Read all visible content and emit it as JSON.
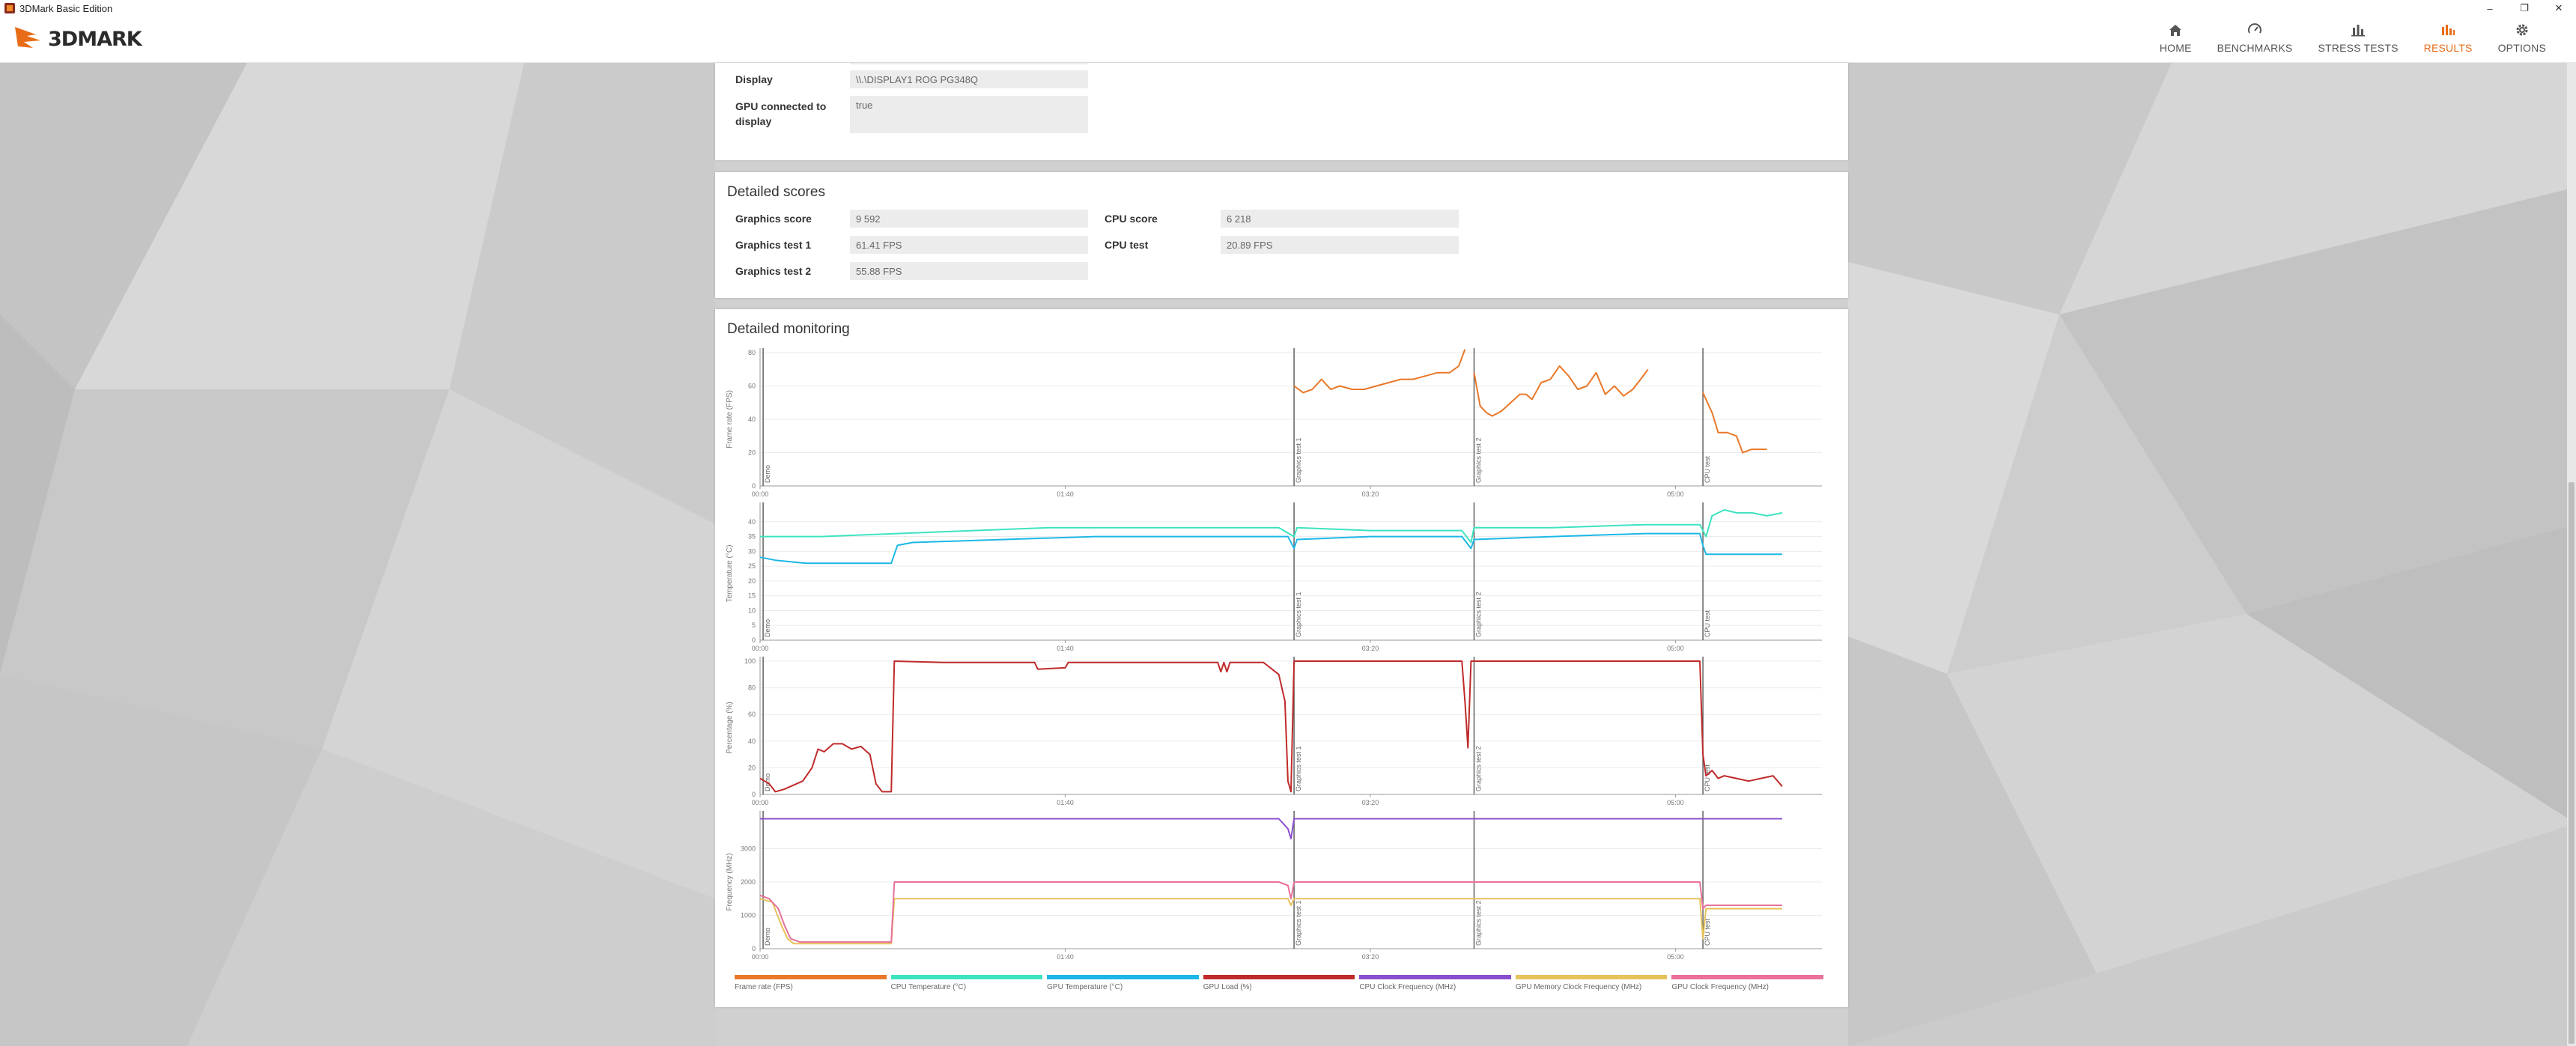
{
  "window": {
    "title": "3DMark Basic Edition"
  },
  "header": {
    "logo": "3DMARK",
    "nav": [
      {
        "label": "HOME",
        "icon": "home-icon",
        "active": false
      },
      {
        "label": "BENCHMARKS",
        "icon": "benchmarks-icon",
        "active": false
      },
      {
        "label": "STRESS TESTS",
        "icon": "stress-tests-icon",
        "active": false
      },
      {
        "label": "RESULTS",
        "icon": "results-icon",
        "active": true
      },
      {
        "label": "OPTIONS",
        "icon": "gear-icon",
        "active": false
      }
    ]
  },
  "display_info": {
    "rows": [
      {
        "label": "Display",
        "value": "\\\\.\\DISPLAY1 ROG PG348Q"
      },
      {
        "label": "GPU connected to display",
        "value": "true"
      }
    ]
  },
  "detailed_scores": {
    "title": "Detailed scores",
    "rows": [
      {
        "label": "Graphics score",
        "value": "9 592"
      },
      {
        "label": "Graphics test 1",
        "value": "61.41 FPS"
      },
      {
        "label": "Graphics test 2",
        "value": "55.88 FPS"
      },
      {
        "label": "CPU score",
        "value": "6 218"
      },
      {
        "label": "CPU test",
        "value": "20.89 FPS"
      }
    ]
  },
  "monitoring": {
    "title": "Detailed monitoring",
    "x_ticks": [
      "00:00",
      "01:40",
      "03:20",
      "05:00"
    ],
    "markers": [
      "Demo",
      "Graphics test 1",
      "Graphics test 2",
      "CPU test"
    ],
    "legend": [
      {
        "label": "Frame rate (FPS)",
        "color": "#e9782a"
      },
      {
        "label": "CPU Temperature (°C)",
        "color": "#3de3c0"
      },
      {
        "label": "GPU Temperature (°C)",
        "color": "#1cb7e6"
      },
      {
        "label": "GPU Load (%)",
        "color": "#c02a2a"
      },
      {
        "label": "CPU Clock Frequency (MHz)",
        "color": "#8a4fcf"
      },
      {
        "label": "GPU Memory Clock Frequency (MHz)",
        "color": "#e6c25a"
      },
      {
        "label": "GPU Clock Frequency (MHz)",
        "color": "#e8729a"
      }
    ]
  },
  "chart_data": [
    {
      "type": "line",
      "ylabel": "Frame rate (FPS)",
      "ylim": [
        0,
        80
      ],
      "yticks": [
        0,
        20,
        40,
        60,
        80
      ],
      "xlim": [
        0,
        348
      ],
      "series": [
        {
          "name": "Frame rate (FPS)",
          "color": "#e9782a",
          "segments": [
            [
              [
                175,
                60
              ],
              [
                178,
                56
              ],
              [
                181,
                58
              ],
              [
                184,
                64
              ],
              [
                187,
                58
              ],
              [
                190,
                60
              ],
              [
                194,
                58
              ],
              [
                198,
                58
              ],
              [
                202,
                60
              ],
              [
                206,
                62
              ],
              [
                210,
                64
              ],
              [
                214,
                64
              ],
              [
                218,
                66
              ],
              [
                222,
                68
              ],
              [
                226,
                68
              ],
              [
                229,
                72
              ],
              [
                231,
                82
              ]
            ],
            [
              [
                234,
                68
              ],
              [
                236,
                48
              ],
              [
                238,
                44
              ],
              [
                240,
                42
              ],
              [
                243,
                45
              ],
              [
                246,
                50
              ],
              [
                249,
                55
              ],
              [
                251,
                55
              ],
              [
                253,
                52
              ],
              [
                256,
                62
              ],
              [
                259,
                64
              ],
              [
                262,
                72
              ],
              [
                265,
                66
              ],
              [
                268,
                58
              ],
              [
                271,
                60
              ],
              [
                274,
                68
              ],
              [
                277,
                55
              ],
              [
                280,
                60
              ],
              [
                283,
                54
              ],
              [
                286,
                58
              ],
              [
                289,
                65
              ],
              [
                291,
                70
              ]
            ],
            [
              [
                309,
                56
              ],
              [
                312,
                44
              ],
              [
                314,
                32
              ],
              [
                317,
                32
              ],
              [
                320,
                30
              ],
              [
                322,
                20
              ],
              [
                325,
                22
              ],
              [
                328,
                22
              ],
              [
                330,
                22
              ]
            ]
          ]
        }
      ]
    },
    {
      "type": "line",
      "ylabel": "Temperature (°C)",
      "ylim": [
        0,
        45
      ],
      "yticks": [
        0,
        5,
        10,
        15,
        20,
        25,
        30,
        35,
        40
      ],
      "xlim": [
        0,
        348
      ],
      "series": [
        {
          "name": "CPU Temperature (°C)",
          "color": "#3de3c0",
          "points": [
            [
              0,
              35
            ],
            [
              20,
              35
            ],
            [
              45,
              36
            ],
            [
              70,
              37
            ],
            [
              95,
              38
            ],
            [
              120,
              38
            ],
            [
              145,
              38
            ],
            [
              170,
              38
            ],
            [
              175,
              35
            ],
            [
              176,
              38
            ],
            [
              200,
              37
            ],
            [
              230,
              37
            ],
            [
              233,
              33
            ],
            [
              234,
              38
            ],
            [
              260,
              38
            ],
            [
              290,
              39
            ],
            [
              308,
              39
            ],
            [
              310,
              35
            ],
            [
              312,
              42
            ],
            [
              316,
              44
            ],
            [
              320,
              43
            ],
            [
              325,
              43
            ],
            [
              330,
              42
            ],
            [
              335,
              43
            ]
          ]
        },
        {
          "name": "GPU Temperature (°C)",
          "color": "#1cb7e6",
          "points": [
            [
              0,
              28
            ],
            [
              5,
              27
            ],
            [
              15,
              26
            ],
            [
              25,
              26
            ],
            [
              43,
              26
            ],
            [
              44,
              29
            ],
            [
              45,
              32
            ],
            [
              50,
              33
            ],
            [
              80,
              34
            ],
            [
              110,
              35
            ],
            [
              140,
              35
            ],
            [
              170,
              35
            ],
            [
              173,
              35
            ],
            [
              175,
              31
            ],
            [
              176,
              34
            ],
            [
              200,
              35
            ],
            [
              230,
              35
            ],
            [
              233,
              31
            ],
            [
              234,
              34
            ],
            [
              260,
              35
            ],
            [
              290,
              36
            ],
            [
              308,
              36
            ],
            [
              309,
              32
            ],
            [
              310,
              29
            ],
            [
              320,
              29
            ],
            [
              335,
              29
            ]
          ]
        }
      ]
    },
    {
      "type": "line",
      "ylabel": "Percentage (%)",
      "ylim": [
        0,
        100
      ],
      "yticks": [
        0,
        20,
        40,
        60,
        80,
        100
      ],
      "xlim": [
        0,
        348
      ],
      "series": [
        {
          "name": "GPU Load (%)",
          "color": "#c02a2a",
          "points": [
            [
              0,
              12
            ],
            [
              3,
              8
            ],
            [
              5,
              2
            ],
            [
              8,
              4
            ],
            [
              10,
              6
            ],
            [
              14,
              10
            ],
            [
              17,
              20
            ],
            [
              19,
              34
            ],
            [
              21,
              32
            ],
            [
              24,
              38
            ],
            [
              27,
              38
            ],
            [
              30,
              34
            ],
            [
              33,
              36
            ],
            [
              36,
              30
            ],
            [
              38,
              8
            ],
            [
              40,
              2
            ],
            [
              43,
              2
            ],
            [
              44,
              100
            ],
            [
              60,
              99
            ],
            [
              90,
              99
            ],
            [
              91,
              94
            ],
            [
              100,
              95
            ],
            [
              101,
              99
            ],
            [
              150,
              99
            ],
            [
              151,
              92
            ],
            [
              152,
              99
            ],
            [
              153,
              92
            ],
            [
              154,
              99
            ],
            [
              160,
              99
            ],
            [
              165,
              99
            ],
            [
              170,
              90
            ],
            [
              172,
              70
            ],
            [
              173,
              10
            ],
            [
              174,
              2
            ],
            [
              175,
              100
            ],
            [
              200,
              100
            ],
            [
              230,
              100
            ],
            [
              231,
              70
            ],
            [
              232,
              35
            ],
            [
              233,
              100
            ],
            [
              260,
              100
            ],
            [
              290,
              100
            ],
            [
              308,
              100
            ],
            [
              309,
              30
            ],
            [
              310,
              14
            ],
            [
              312,
              18
            ],
            [
              314,
              12
            ],
            [
              316,
              14
            ],
            [
              320,
              12
            ],
            [
              324,
              10
            ],
            [
              328,
              12
            ],
            [
              332,
              14
            ],
            [
              335,
              6
            ]
          ]
        }
      ]
    },
    {
      "type": "line",
      "ylabel": "Frequency (MHz)",
      "ylim": [
        0,
        4000
      ],
      "yticks": [
        0,
        1000,
        2000,
        3000
      ],
      "xlim": [
        0,
        348
      ],
      "series": [
        {
          "name": "CPU Clock Frequency (MHz)",
          "color": "#8a4fcf",
          "points": [
            [
              0,
              3900
            ],
            [
              170,
              3900
            ],
            [
              173,
              3600
            ],
            [
              174,
              3300
            ],
            [
              175,
              3900
            ],
            [
              230,
              3900
            ],
            [
              308,
              3900
            ],
            [
              335,
              3900
            ]
          ]
        },
        {
          "name": "GPU Memory Clock Frequency (MHz)",
          "color": "#e6c25a",
          "points": [
            [
              0,
              1500
            ],
            [
              4,
              1400
            ],
            [
              7,
              700
            ],
            [
              9,
              300
            ],
            [
              11,
              150
            ],
            [
              15,
              150
            ],
            [
              43,
              150
            ],
            [
              44,
              1500
            ],
            [
              170,
              1500
            ],
            [
              173,
              1500
            ],
            [
              174,
              1300
            ],
            [
              175,
              1500
            ],
            [
              308,
              1500
            ],
            [
              309,
              300
            ],
            [
              310,
              1200
            ],
            [
              335,
              1200
            ]
          ]
        },
        {
          "name": "GPU Clock Frequency (MHz)",
          "color": "#e8729a",
          "points": [
            [
              0,
              1600
            ],
            [
              3,
              1500
            ],
            [
              6,
              1200
            ],
            [
              8,
              700
            ],
            [
              10,
              300
            ],
            [
              13,
              200
            ],
            [
              43,
              200
            ],
            [
              44,
              2000
            ],
            [
              170,
              2000
            ],
            [
              173,
              1900
            ],
            [
              174,
              1500
            ],
            [
              175,
              2000
            ],
            [
              230,
              2000
            ],
            [
              308,
              2000
            ],
            [
              309,
              1200
            ],
            [
              310,
              1300
            ],
            [
              335,
              1300
            ]
          ]
        }
      ]
    }
  ]
}
